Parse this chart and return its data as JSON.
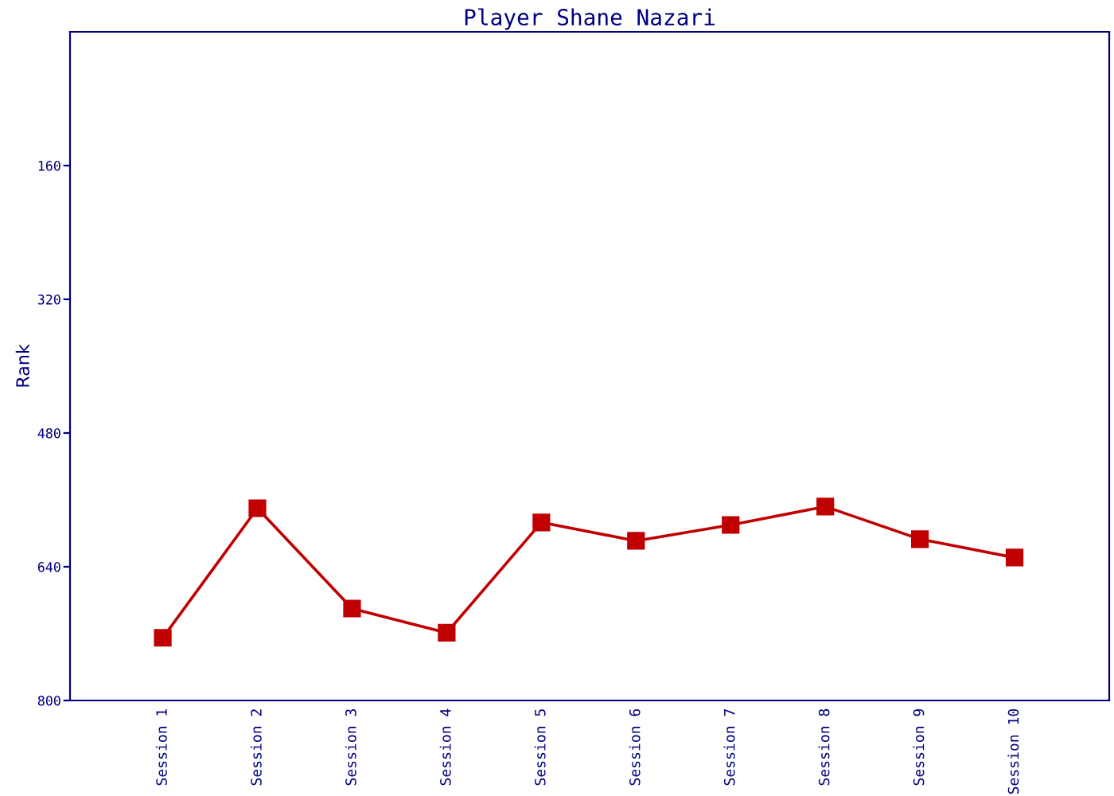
{
  "chart_data": {
    "type": "line",
    "title": "Player Shane Nazari",
    "ylabel": "Rank",
    "categories": [
      "Session 1",
      "Session 2",
      "Session 3",
      "Session 4",
      "Session 5",
      "Session 6",
      "Session 7",
      "Session 8",
      "Session 9",
      "Session 10"
    ],
    "series": [
      {
        "color": "#c00000",
        "values": [
          725,
          570,
          690,
          719,
          587,
          609,
          590,
          568,
          607,
          629
        ]
      }
    ],
    "ylim": [
      800,
      0
    ],
    "yticks": [
      160,
      320,
      480,
      640,
      800
    ],
    "marker": "square",
    "line_style": "solid",
    "grid": false,
    "legend": false
  }
}
